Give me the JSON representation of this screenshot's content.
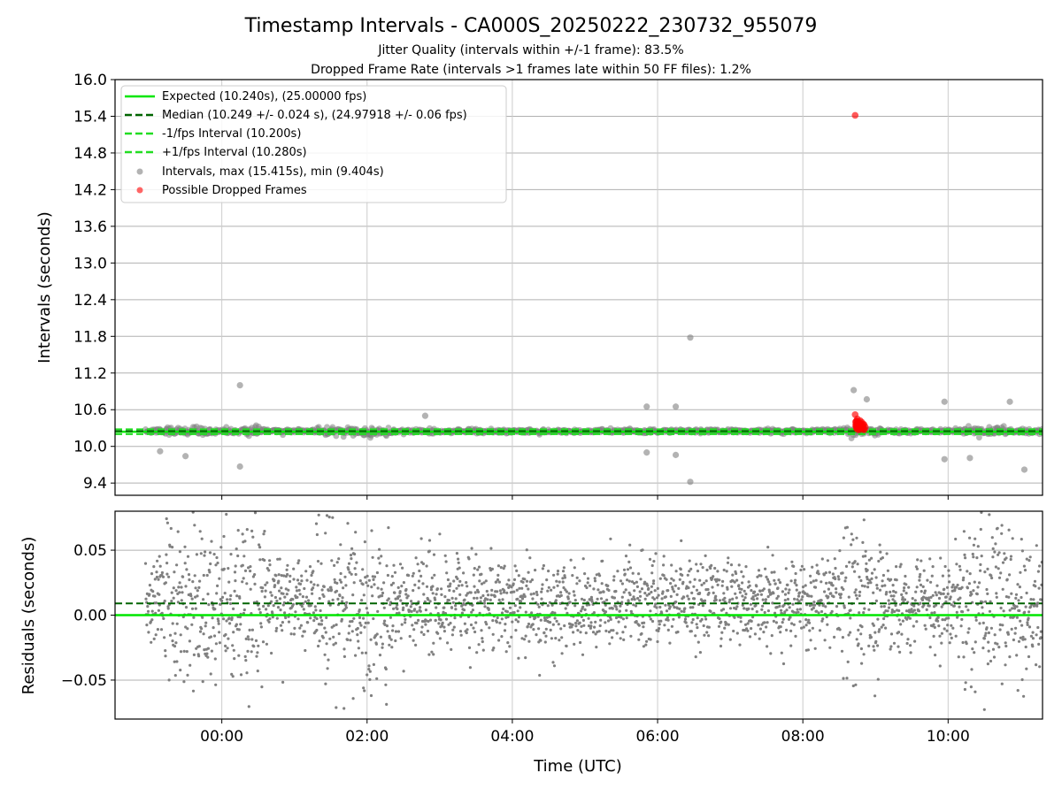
{
  "chart_data": {
    "type": "scatter",
    "title": "Timestamp Intervals - CA000S_20250222_230732_955079",
    "subtitle_1": "Jitter Quality (intervals within +/-1 frame): 83.5%",
    "subtitle_2": "Dropped Frame Rate (intervals >1 frames late within 50 FF files): 1.2%",
    "xlabel": "Time (UTC)",
    "x_tick_labels": [
      "00:00",
      "02:00",
      "04:00",
      "06:00",
      "08:00",
      "10:00"
    ],
    "x_tick_hours": [
      0,
      2,
      4,
      6,
      8,
      10
    ],
    "xlim_hours": [
      -1.47,
      11.3
    ],
    "top_panel": {
      "ylabel": "Intervals (seconds)",
      "ylim": [
        9.2,
        16.0
      ],
      "y_ticks": [
        9.4,
        10.0,
        10.6,
        11.2,
        11.8,
        12.4,
        13.0,
        13.6,
        14.2,
        14.8,
        15.4,
        16.0
      ],
      "y_tick_labels": [
        "9.4",
        "10.0",
        "10.6",
        "11.2",
        "11.8",
        "12.4",
        "13.0",
        "13.6",
        "14.2",
        "14.8",
        "15.4",
        "16.0"
      ],
      "expected": 10.24,
      "median": 10.249,
      "minus_one_frame": 10.2,
      "plus_one_frame": 10.28,
      "legend": {
        "expected": "Expected (10.240s), (25.00000 fps)",
        "median": "Median (10.249 +/- 0.024 s), (24.97918 +/- 0.06 fps)",
        "minus": "-1/fps Interval (10.200s)",
        "plus": "+1/fps Interval (10.280s)",
        "intervals": "Intervals, max (15.415s), min (9.404s)",
        "dropped": "Possible Dropped Frames"
      },
      "outliers": [
        {
          "x": -0.85,
          "y": 9.92
        },
        {
          "x": -0.5,
          "y": 9.84
        },
        {
          "x": 0.25,
          "y": 11.0
        },
        {
          "x": 0.25,
          "y": 9.67
        },
        {
          "x": 2.8,
          "y": 10.5
        },
        {
          "x": 5.85,
          "y": 10.65
        },
        {
          "x": 6.25,
          "y": 10.65
        },
        {
          "x": 5.85,
          "y": 9.9
        },
        {
          "x": 6.25,
          "y": 9.86
        },
        {
          "x": 6.45,
          "y": 11.78
        },
        {
          "x": 6.45,
          "y": 9.42
        },
        {
          "x": 8.7,
          "y": 10.92
        },
        {
          "x": 8.88,
          "y": 10.77
        },
        {
          "x": 9.95,
          "y": 10.73
        },
        {
          "x": 9.95,
          "y": 9.79
        },
        {
          "x": 10.3,
          "y": 9.81
        },
        {
          "x": 10.85,
          "y": 10.73
        },
        {
          "x": 11.05,
          "y": 9.62
        }
      ],
      "dropped_frames": [
        {
          "x": 8.72,
          "y": 15.415
        },
        {
          "x": 8.72,
          "y": 10.52
        },
        {
          "x": 8.75,
          "y": 10.45
        },
        {
          "x": 8.78,
          "y": 10.38
        },
        {
          "x": 8.8,
          "y": 10.33
        },
        {
          "x": 8.82,
          "y": 10.3
        },
        {
          "x": 8.76,
          "y": 10.35
        },
        {
          "x": 8.84,
          "y": 10.36
        },
        {
          "x": 8.74,
          "y": 10.29
        },
        {
          "x": 8.79,
          "y": 10.42
        }
      ]
    },
    "bottom_panel": {
      "ylabel": "Residuals (seconds)",
      "ylim": [
        -0.08,
        0.08
      ],
      "y_ticks": [
        -0.05,
        0.0,
        0.05
      ],
      "y_tick_labels": [
        "−0.05",
        "0.00",
        "0.05"
      ],
      "expected_residual": 0.0,
      "median_residual": 0.009
    },
    "colors": {
      "expected": "#00e600",
      "median": "#006400",
      "bounds": "#22dd22",
      "intervals": "#808080",
      "dropped": "#ff0000",
      "grid": "#b0b0b0"
    },
    "grid": true,
    "legend_placement": "top-left"
  }
}
